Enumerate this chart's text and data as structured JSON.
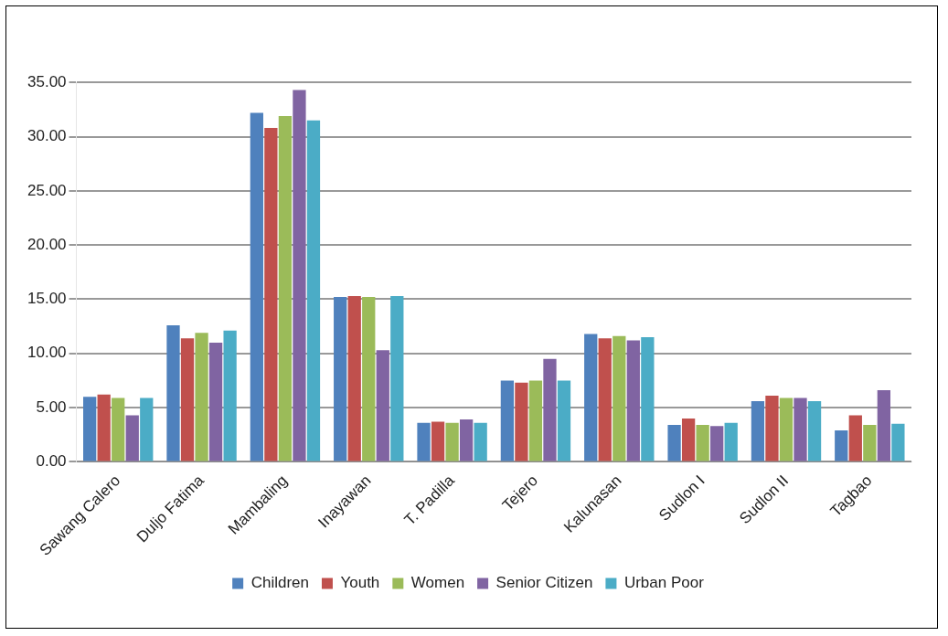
{
  "chart_data": {
    "type": "bar",
    "categories": [
      "Sawang Calero",
      "Duljo Fatima",
      "Mambaling",
      "Inayawan",
      "T. Padilla",
      "Tejero",
      "Kalunasan",
      "Sudlon I",
      "Sudlon II",
      "Tagbao"
    ],
    "series": [
      {
        "name": "Children",
        "color": "#4f81bd",
        "values": [
          6.0,
          12.6,
          32.2,
          15.2,
          3.6,
          7.5,
          11.8,
          3.4,
          5.6,
          2.9
        ]
      },
      {
        "name": "Youth",
        "color": "#c0504d",
        "values": [
          6.2,
          11.4,
          30.8,
          15.3,
          3.7,
          7.3,
          11.4,
          4.0,
          6.1,
          4.3
        ]
      },
      {
        "name": "Women",
        "color": "#9bbb59",
        "values": [
          5.9,
          11.9,
          31.9,
          15.2,
          3.6,
          7.5,
          11.6,
          3.4,
          5.9,
          3.4
        ]
      },
      {
        "name": "Senior Citizen",
        "color": "#8064a2",
        "values": [
          4.3,
          11.0,
          34.3,
          10.3,
          3.9,
          9.5,
          11.2,
          3.3,
          5.9,
          6.6
        ]
      },
      {
        "name": "Urban Poor",
        "color": "#4bacc6",
        "values": [
          5.9,
          12.1,
          31.5,
          15.3,
          3.6,
          7.5,
          11.5,
          3.6,
          5.6,
          3.5
        ]
      }
    ],
    "ylim": [
      0,
      35
    ],
    "yticks": [
      {
        "value": 0,
        "label": "0.00"
      },
      {
        "value": 5,
        "label": "5.00"
      },
      {
        "value": 10,
        "label": "10.00"
      },
      {
        "value": 15,
        "label": "15.00"
      },
      {
        "value": 20,
        "label": "20.00"
      },
      {
        "value": 25,
        "label": "25.00"
      },
      {
        "value": 30,
        "label": "30.00"
      },
      {
        "value": 35,
        "label": "35.00"
      }
    ],
    "grid": "y",
    "legend": "bottom"
  }
}
